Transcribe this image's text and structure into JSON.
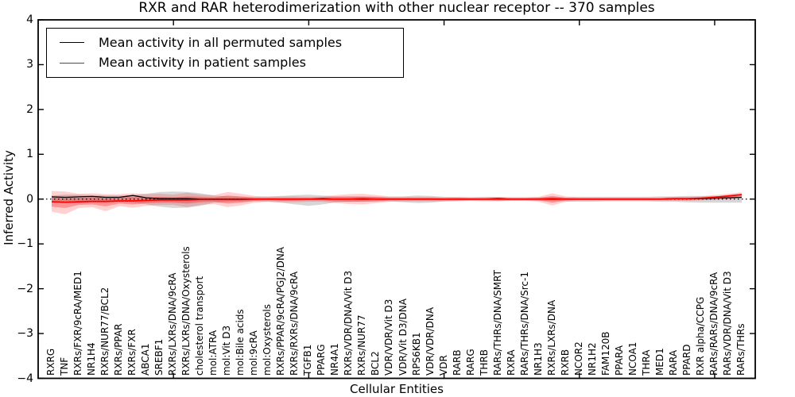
{
  "window": {
    "kind": "matplotlib-figure",
    "background": "#ffffff"
  },
  "chart_data": {
    "type": "line",
    "title": "RXR and RAR heterodimerization with other nuclear receptor -- 370 samples",
    "xlabel": "Cellular Entities",
    "ylabel": "Inferred Activity",
    "ylim": [
      -4,
      4
    ],
    "yticks": {
      "values": [
        4,
        3,
        2,
        1,
        0,
        -1,
        -2,
        -3,
        -4
      ],
      "labels": [
        "4",
        "3",
        "2",
        "1",
        "0",
        "−1",
        "−2",
        "−3",
        "−4"
      ]
    },
    "x_major_tick_every": 10,
    "grid": false,
    "legend_position": "upper left",
    "legend": [
      {
        "label": "Mean activity in all permuted samples",
        "color": "#000000"
      },
      {
        "label": "Mean activity in patient samples",
        "color": "#ff0000"
      }
    ],
    "categories": [
      "RXRG",
      "TNF",
      "RXRs/FXR/9cRA/MED1",
      "NR1H4",
      "RXRs/NUR77/BCL2",
      "RXRs/PPAR",
      "RXRs/FXR",
      "ABCA1",
      "SREBF1",
      "RXRs/LXRs/DNA/9cRA",
      "RXRs/LXRs/DNA/Oxysterols",
      "cholesterol transport",
      "mol:ATRA",
      "mol:Vit D3",
      "mol:Bile acids",
      "mol:9cRA",
      "mol:Oxysterols",
      "RXRs/PPAR/9cRA/PGJ2/DNA",
      "RXRs/RXRs/DNA/9cRA",
      "TGFB1",
      "PPARG",
      "NR4A1",
      "RXRs/VDR/DNA/Vit D3",
      "RXRs/NUR77",
      "BCL2",
      "VDR/VDR/Vit D3",
      "VDR/Vit D3/DNA",
      "RPS6KB1",
      "VDR/VDR/DNA",
      "VDR",
      "RARB",
      "RARG",
      "THRB",
      "RARs/THRs/DNA/SMRT",
      "RXRA",
      "RARs/THRs/DNA/Src-1",
      "NR1H3",
      "RXRs/LXRs/DNA",
      "RXRB",
      "NCOR2",
      "NR1H2",
      "FAM120B",
      "PPARA",
      "NCOA1",
      "THRA",
      "MED1",
      "RARA",
      "PPARD",
      "RXR alpha/CCPG",
      "RARs/RARs/DNA/9cRA",
      "RARs/VDR/DNA/Vit D3",
      "RARs/THRs"
    ],
    "series": [
      {
        "name": "Mean activity in all permuted samples",
        "color": "#000000",
        "width": 1.3,
        "values": [
          0.05,
          0.04,
          0.05,
          0.06,
          0.04,
          0.04,
          0.08,
          0.03,
          0.01,
          0.01,
          0.01,
          0.0,
          0.0,
          0.0,
          0.0,
          0.0,
          0.0,
          0.0,
          0.0,
          0.0,
          0.01,
          0.0,
          0.0,
          0.0,
          0.0,
          0.0,
          0.0,
          0.0,
          0.0,
          0.0,
          0.0,
          0.0,
          0.0,
          0.01,
          0.0,
          0.0,
          0.0,
          0.0,
          0.0,
          0.0,
          0.0,
          0.0,
          0.0,
          0.0,
          0.0,
          0.0,
          0.01,
          0.01,
          0.01,
          0.02,
          0.03,
          0.04
        ]
      },
      {
        "name": "Mean activity in patient samples",
        "color": "#ff0000",
        "width": 1.7,
        "values": [
          -0.06,
          -0.07,
          -0.06,
          -0.05,
          -0.05,
          -0.04,
          -0.04,
          -0.03,
          -0.02,
          -0.02,
          -0.02,
          -0.01,
          -0.01,
          -0.01,
          -0.01,
          0.0,
          0.0,
          0.0,
          0.0,
          0.0,
          0.0,
          0.0,
          0.0,
          0.01,
          0.0,
          0.0,
          0.0,
          0.0,
          0.0,
          0.0,
          0.0,
          0.0,
          0.0,
          0.0,
          0.0,
          0.0,
          0.0,
          0.01,
          0.0,
          0.0,
          0.0,
          0.0,
          0.0,
          0.0,
          0.0,
          0.0,
          0.01,
          0.01,
          0.02,
          0.04,
          0.07,
          0.1
        ]
      }
    ],
    "bands": [
      {
        "name": "permuted-samples-range",
        "color": "rgba(130,130,130,0.32)",
        "upper": [
          0.08,
          0.1,
          0.1,
          0.09,
          0.08,
          0.08,
          0.09,
          0.12,
          0.16,
          0.17,
          0.16,
          0.13,
          0.08,
          0.06,
          0.05,
          0.05,
          0.06,
          0.07,
          0.09,
          0.1,
          0.08,
          0.06,
          0.05,
          0.05,
          0.05,
          0.05,
          0.06,
          0.08,
          0.07,
          0.05,
          0.04,
          0.04,
          0.05,
          0.04,
          0.04,
          0.04,
          0.04,
          0.04,
          0.04,
          0.05,
          0.05,
          0.05,
          0.05,
          0.05,
          0.05,
          0.06,
          0.06,
          0.07,
          0.07,
          0.07,
          0.06,
          0.06
        ],
        "lower": [
          -0.06,
          -0.08,
          -0.09,
          -0.07,
          -0.08,
          -0.07,
          -0.08,
          -0.12,
          -0.17,
          -0.2,
          -0.19,
          -0.15,
          -0.08,
          -0.06,
          -0.05,
          -0.05,
          -0.06,
          -0.08,
          -0.12,
          -0.15,
          -0.12,
          -0.07,
          -0.06,
          -0.05,
          -0.05,
          -0.05,
          -0.07,
          -0.09,
          -0.08,
          -0.05,
          -0.04,
          -0.04,
          -0.05,
          -0.04,
          -0.04,
          -0.04,
          -0.04,
          -0.04,
          -0.05,
          -0.06,
          -0.06,
          -0.05,
          -0.05,
          -0.05,
          -0.05,
          -0.06,
          -0.06,
          -0.07,
          -0.08,
          -0.08,
          -0.08,
          -0.08
        ]
      },
      {
        "name": "patient-samples-range-outer",
        "color": "rgba(255,0,0,0.18)",
        "upper": [
          0.18,
          0.17,
          0.12,
          0.13,
          0.11,
          0.11,
          0.13,
          0.11,
          0.12,
          0.1,
          0.14,
          0.1,
          0.09,
          0.16,
          0.12,
          0.07,
          0.05,
          0.06,
          0.06,
          0.05,
          0.06,
          0.09,
          0.11,
          0.12,
          0.09,
          0.06,
          0.05,
          0.05,
          0.05,
          0.04,
          0.05,
          0.04,
          0.04,
          0.05,
          0.04,
          0.04,
          0.05,
          0.13,
          0.06,
          0.04,
          0.04,
          0.04,
          0.04,
          0.04,
          0.04,
          0.04,
          0.05,
          0.05,
          0.06,
          0.09,
          0.12,
          0.15
        ],
        "lower": [
          -0.28,
          -0.34,
          -0.2,
          -0.18,
          -0.27,
          -0.16,
          -0.19,
          -0.15,
          -0.13,
          -0.13,
          -0.18,
          -0.13,
          -0.11,
          -0.18,
          -0.14,
          -0.08,
          -0.06,
          -0.07,
          -0.07,
          -0.06,
          -0.06,
          -0.09,
          -0.11,
          -0.12,
          -0.09,
          -0.06,
          -0.05,
          -0.05,
          -0.05,
          -0.05,
          -0.05,
          -0.04,
          -0.04,
          -0.05,
          -0.04,
          -0.04,
          -0.06,
          -0.14,
          -0.06,
          -0.04,
          -0.04,
          -0.04,
          -0.04,
          -0.04,
          -0.04,
          -0.04,
          -0.04,
          -0.04,
          -0.03,
          -0.02,
          -0.01,
          0.02
        ]
      },
      {
        "name": "patient-samples-range-inner",
        "color": "rgba(255,0,0,0.30)",
        "upper": [
          0.06,
          0.05,
          0.03,
          0.04,
          0.03,
          0.04,
          0.05,
          0.04,
          0.05,
          0.04,
          0.06,
          0.05,
          0.04,
          0.08,
          0.06,
          0.03,
          0.03,
          0.03,
          0.03,
          0.03,
          0.03,
          0.05,
          0.06,
          0.06,
          0.05,
          0.03,
          0.03,
          0.03,
          0.03,
          0.02,
          0.03,
          0.02,
          0.02,
          0.03,
          0.02,
          0.02,
          0.03,
          0.07,
          0.03,
          0.02,
          0.02,
          0.02,
          0.02,
          0.02,
          0.02,
          0.02,
          0.03,
          0.03,
          0.04,
          0.06,
          0.09,
          0.12
        ],
        "lower": [
          -0.17,
          -0.2,
          -0.13,
          -0.12,
          -0.16,
          -0.1,
          -0.12,
          -0.09,
          -0.08,
          -0.08,
          -0.1,
          -0.07,
          -0.06,
          -0.1,
          -0.08,
          -0.04,
          -0.03,
          -0.04,
          -0.04,
          -0.03,
          -0.03,
          -0.05,
          -0.06,
          -0.06,
          -0.05,
          -0.03,
          -0.03,
          -0.03,
          -0.03,
          -0.03,
          -0.03,
          -0.02,
          -0.02,
          -0.03,
          -0.02,
          -0.02,
          -0.03,
          -0.08,
          -0.03,
          -0.02,
          -0.02,
          -0.02,
          -0.02,
          -0.02,
          -0.02,
          -0.02,
          -0.02,
          -0.02,
          -0.01,
          0.01,
          0.03,
          0.06
        ]
      }
    ],
    "zero_line": {
      "value": 0,
      "style": "dotted",
      "color": "#000000"
    },
    "axis_color": "#000000"
  }
}
